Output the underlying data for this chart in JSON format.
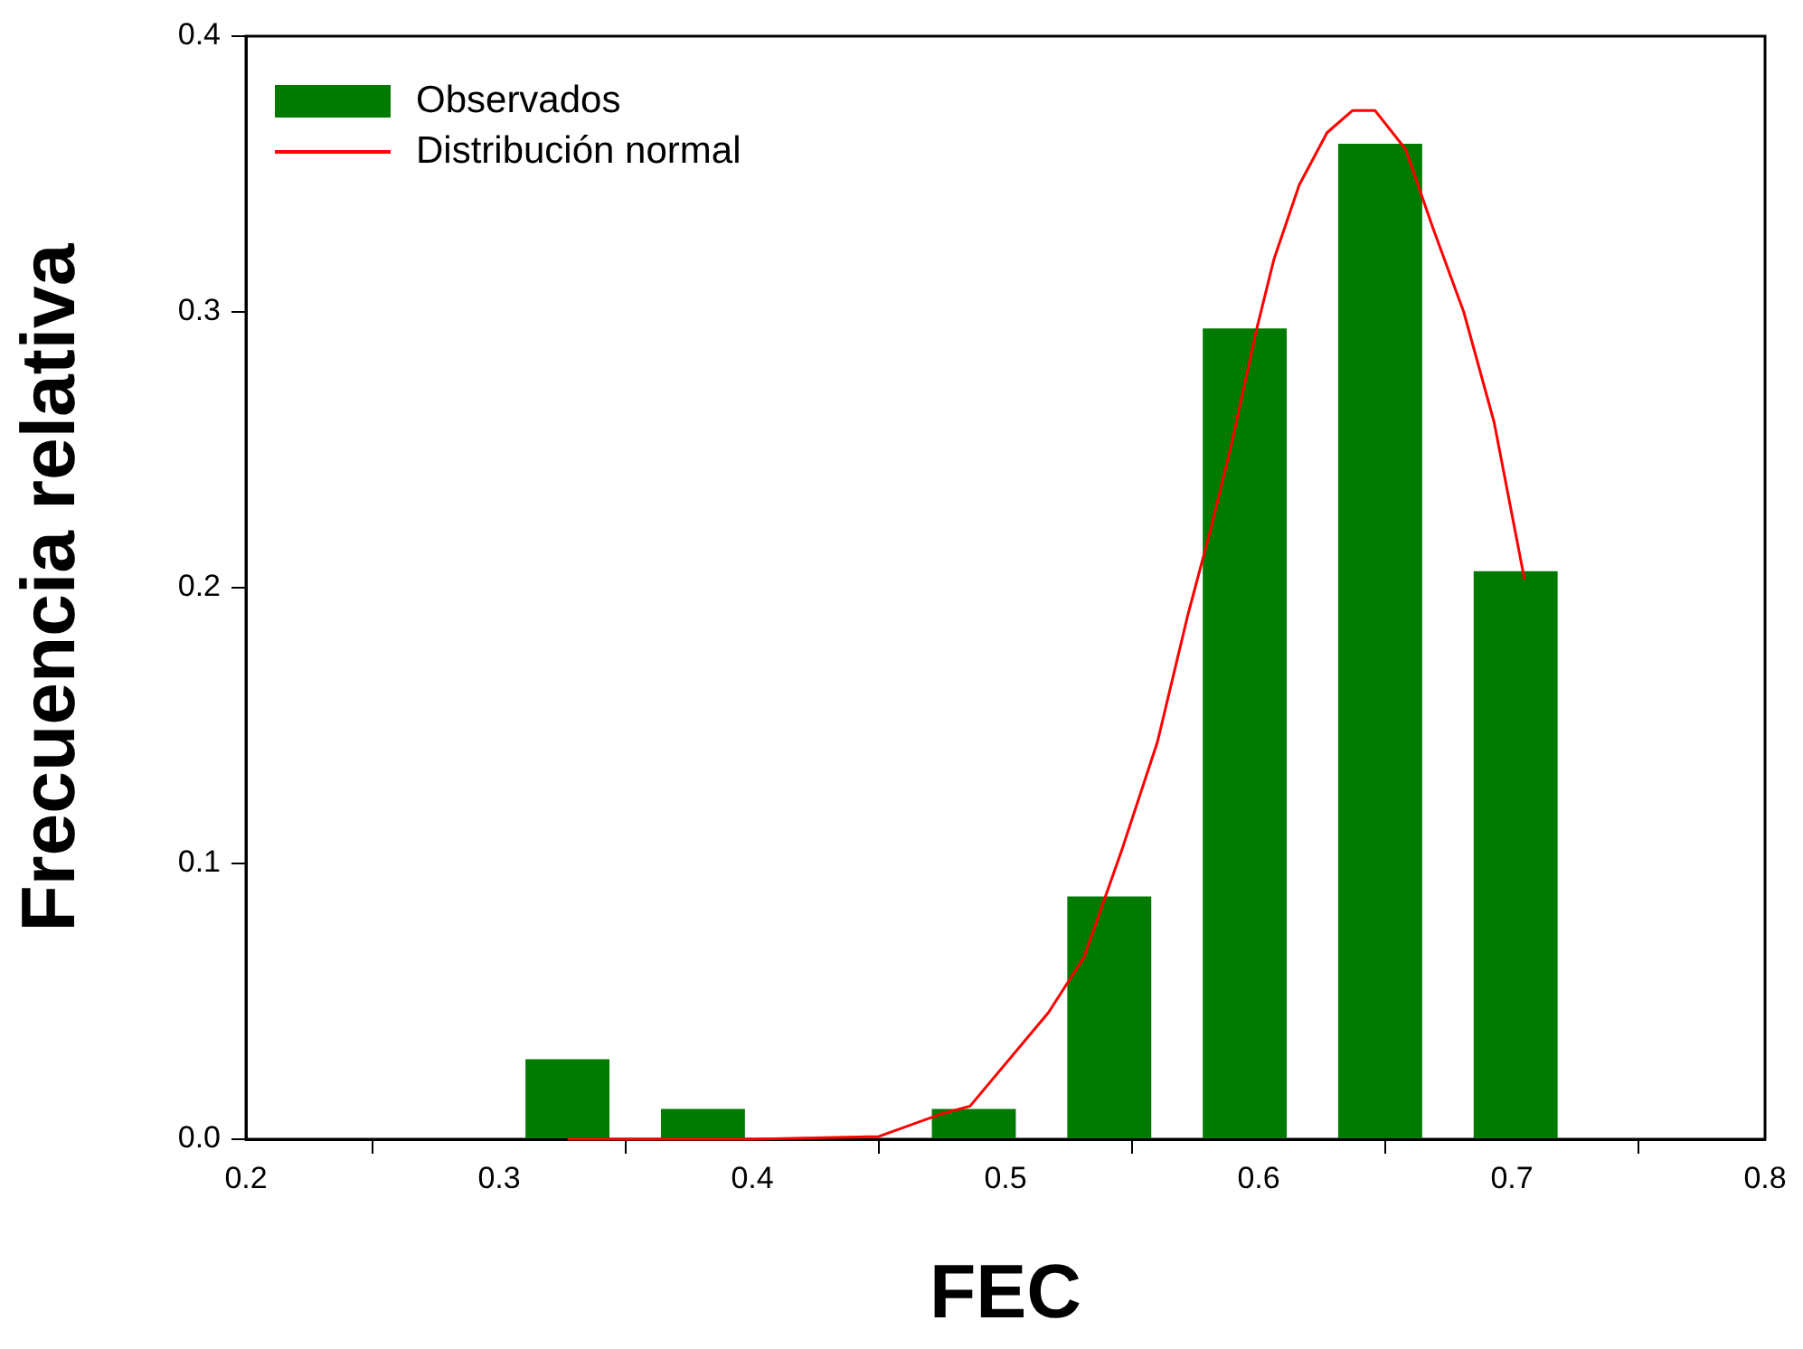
{
  "chart_data": {
    "type": "histogram",
    "xlabel": "FEC",
    "ylabel": "Frecuencia relativa",
    "xlim": [
      0.2,
      0.8
    ],
    "xticks": [
      0.2,
      0.3,
      0.4,
      0.5,
      0.6,
      0.7,
      0.8
    ],
    "ylim": [
      0,
      0.4
    ],
    "yticks": [
      {
        "value": 0,
        "label": "0.0"
      },
      0.1,
      0.2,
      0.3,
      0.4
    ],
    "grid": false,
    "legend": "top left",
    "series": [
      {
        "name": "Observados",
        "color": "#007a00",
        "bins": [
          0.3,
          0.354,
          0.407,
          0.461,
          0.514,
          0.568,
          0.621,
          0.675,
          0.728
        ],
        "values": [
          0.029,
          0.011,
          0,
          0.011,
          0.088,
          0.294,
          0.361,
          0.206
        ]
      },
      {
        "type": "line",
        "name": "Distribución normal",
        "color": "#ff0000",
        "marker": "none",
        "line_style": "solid",
        "x": [
          0.327,
          0.4,
          0.45,
          0.474,
          0.486,
          0.517,
          0.531,
          0.546,
          0.56,
          0.572,
          0.581,
          0.589,
          0.599,
          0.606,
          0.616,
          0.627,
          0.637,
          0.646,
          0.658,
          0.669,
          0.681,
          0.693,
          0.705
        ],
        "values": [
          0,
          0,
          0.001,
          0.009,
          0.012,
          0.046,
          0.066,
          0.105,
          0.144,
          0.19,
          0.221,
          0.251,
          0.293,
          0.319,
          0.346,
          0.365,
          0.373,
          0.373,
          0.359,
          0.33,
          0.3,
          0.26,
          0.203
        ]
      }
    ]
  }
}
